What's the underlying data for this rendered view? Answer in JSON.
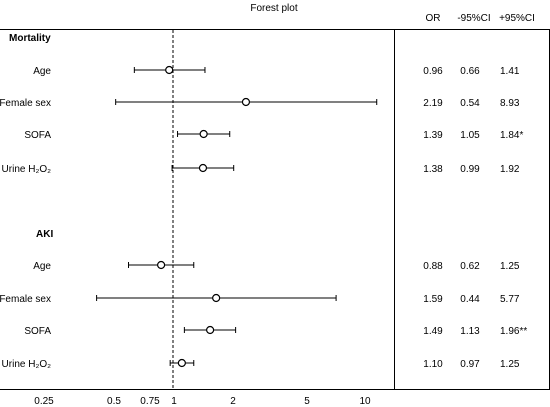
{
  "chart_data": {
    "type": "forest",
    "title": "Forest plot",
    "x_scale": "log",
    "xlim": [
      0.25,
      10
    ],
    "x_ticks": [
      "0.25",
      "0.5",
      "0.75",
      "1",
      "2",
      "5",
      "10"
    ],
    "reference_line": 1,
    "columns": [
      "OR",
      "-95%CI",
      "+95%CI"
    ],
    "groups": [
      {
        "name": "Mortality",
        "rows": [
          {
            "label": "Age",
            "or": "0.96",
            "lo": "0.66",
            "hi": "1.41"
          },
          {
            "label": "Female sex",
            "or": "2.19",
            "lo": "0.54",
            "hi": "8.93"
          },
          {
            "label": "SOFA",
            "or": "1.39",
            "lo": "1.05",
            "hi": "1.84*"
          },
          {
            "label": "Urine H₂O₂",
            "or": "1.38",
            "lo": "0.99",
            "hi": "1.92"
          }
        ]
      },
      {
        "name": "AKI",
        "rows": [
          {
            "label": "Age",
            "or": "0.88",
            "lo": "0.62",
            "hi": "1.25"
          },
          {
            "label": "Female sex",
            "or": "1.59",
            "lo": "0.44",
            "hi": "5.77"
          },
          {
            "label": "SOFA",
            "or": "1.49",
            "lo": "1.13",
            "hi": "1.96**"
          },
          {
            "label": "Urine H₂O₂",
            "or": "1.10",
            "lo": "0.97",
            "hi": "1.25"
          }
        ]
      }
    ]
  }
}
